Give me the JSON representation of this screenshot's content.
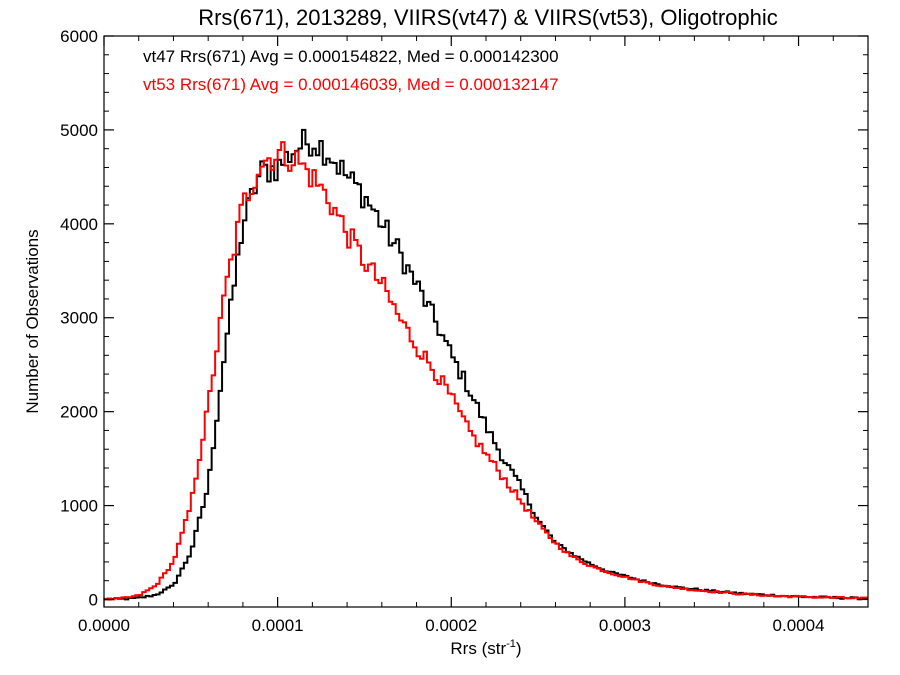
{
  "chart_data": {
    "type": "line",
    "title": "Rrs(671), 2013289, VIIRS(vt47) & VIIRS(vt53), Oligotrophic",
    "xlabel": {
      "base": "Rrs (str",
      "sup": "-1",
      "tail": ")"
    },
    "ylabel": "Number of Observations",
    "xlim": [
      0.0,
      0.00044
    ],
    "ylim": [
      -80,
      6000
    ],
    "x_ticks": [
      0.0,
      0.0001,
      0.0002,
      0.0003,
      0.0004
    ],
    "x_tick_labels": [
      "0.0000",
      "0.0001",
      "0.0002",
      "0.0003",
      "0.0004"
    ],
    "y_ticks": [
      0,
      1000,
      2000,
      3000,
      4000,
      5000,
      6000
    ],
    "y_tick_labels": [
      "0",
      "1000",
      "2000",
      "3000",
      "4000",
      "5000",
      "6000"
    ],
    "legend": [
      {
        "text": "vt47 Rrs(671) Avg = 0.000154822, Med = 0.000142300",
        "color": "#000000"
      },
      {
        "text": "vt53 Rrs(671) Avg = 0.000146039, Med = 0.000132147",
        "color": "#ff0000"
      }
    ],
    "legend_placement": "top-left",
    "grid": false,
    "series": [
      {
        "color": "#000000",
        "x": [
          0.0,
          1e-05,
          2e-05,
          3e-05,
          4e-05,
          5e-05,
          6e-05,
          7e-05,
          8e-05,
          9e-05,
          0.0001,
          0.00011,
          0.00012,
          0.00013,
          0.00014,
          0.00015,
          0.00016,
          0.00017,
          0.00018,
          0.00019,
          0.0002,
          0.00021,
          0.00022,
          0.00023,
          0.00024,
          0.00025,
          0.00026,
          0.00027,
          0.00028,
          0.00029,
          0.0003,
          0.00031,
          0.00032,
          0.00033,
          0.00034,
          0.00035,
          0.00036,
          0.00037,
          0.00038,
          0.00039,
          0.0004,
          0.00041,
          0.00042,
          0.00043,
          0.00044
        ],
        "y": [
          0,
          5,
          15,
          50,
          150,
          500,
          1200,
          2700,
          4000,
          4550,
          4600,
          4800,
          4900,
          4750,
          4500,
          4300,
          4000,
          3700,
          3350,
          3000,
          2600,
          2250,
          1850,
          1500,
          1200,
          850,
          600,
          480,
          380,
          300,
          250,
          200,
          160,
          130,
          110,
          90,
          75,
          60,
          50,
          40,
          30,
          25,
          20,
          15,
          10
        ]
      },
      {
        "color": "#ff0000",
        "x": [
          0.0,
          1e-05,
          2e-05,
          3e-05,
          4e-05,
          5e-05,
          6e-05,
          7e-05,
          8e-05,
          9e-05,
          0.0001,
          0.00011,
          0.00012,
          0.00013,
          0.00014,
          0.00015,
          0.00016,
          0.00017,
          0.00018,
          0.00019,
          0.0002,
          0.00021,
          0.00022,
          0.00023,
          0.00024,
          0.00025,
          0.00026,
          0.00027,
          0.00028,
          0.00029,
          0.0003,
          0.00031,
          0.00032,
          0.00033,
          0.00034,
          0.00035,
          0.00036,
          0.00037,
          0.00038,
          0.00039,
          0.0004,
          0.00041,
          0.00042,
          0.00043,
          0.00044
        ],
        "y": [
          0,
          10,
          40,
          150,
          400,
          1000,
          2050,
          3300,
          4200,
          4650,
          4750,
          4700,
          4500,
          4250,
          3900,
          3600,
          3350,
          3000,
          2700,
          2450,
          2150,
          1800,
          1550,
          1300,
          1050,
          800,
          600,
          450,
          360,
          290,
          240,
          190,
          150,
          125,
          100,
          85,
          70,
          55,
          45,
          35,
          30,
          25,
          20,
          15,
          10
        ]
      }
    ]
  }
}
